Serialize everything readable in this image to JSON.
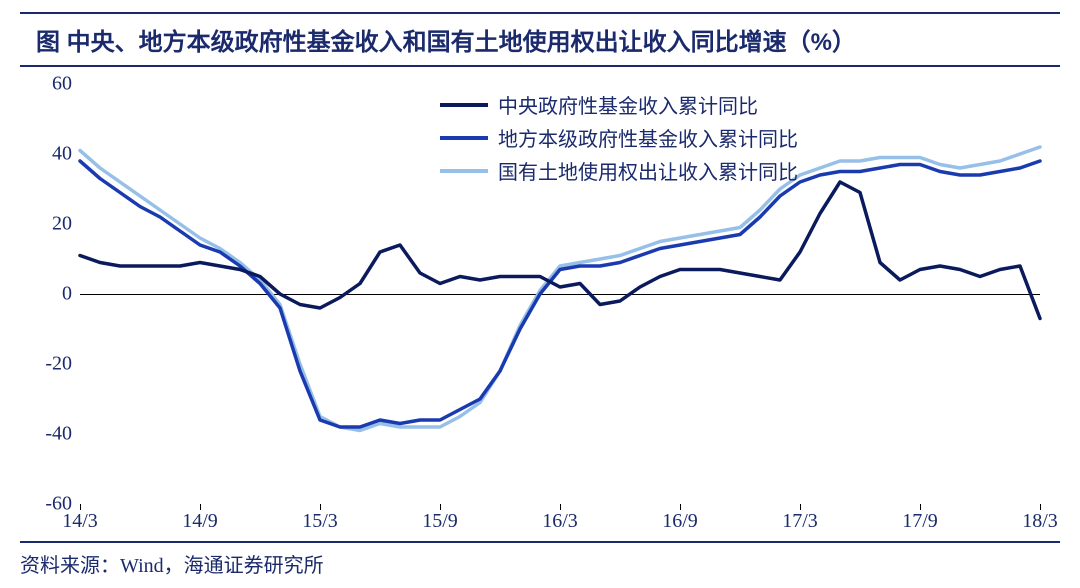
{
  "title": "图 中央、地方本级政府性基金收入和国有土地使用权出让收入同比增速（%）",
  "source": "资料来源：Wind，海通证券研究所",
  "chart": {
    "type": "line",
    "background_color": "#ffffff",
    "title_color": "#1a2a6c",
    "border_color": "#1a2a6c",
    "axis_text_color": "#1a2a6c",
    "axis_fontsize": 20,
    "title_fontsize": 24,
    "ylim": [
      -60,
      60
    ],
    "ytick_step": 20,
    "yticks": [
      60,
      40,
      20,
      0,
      -20,
      -40,
      -60
    ],
    "x_categories": [
      "14/3",
      "14/4",
      "14/5",
      "14/6",
      "14/7",
      "14/8",
      "14/9",
      "14/10",
      "14/11",
      "14/12",
      "15/1",
      "15/2",
      "15/3",
      "15/4",
      "15/5",
      "15/6",
      "15/7",
      "15/8",
      "15/9",
      "15/10",
      "15/11",
      "15/12",
      "16/1",
      "16/2",
      "16/3",
      "16/4",
      "16/5",
      "16/6",
      "16/7",
      "16/8",
      "16/9",
      "16/10",
      "16/11",
      "16/12",
      "17/1",
      "17/2",
      "17/3",
      "17/4",
      "17/5",
      "17/6",
      "17/7",
      "17/8",
      "17/9",
      "17/10",
      "17/11",
      "17/12",
      "18/1",
      "18/2",
      "18/3"
    ],
    "x_tick_labels": [
      "14/3",
      "14/9",
      "15/3",
      "15/9",
      "16/3",
      "16/9",
      "17/3",
      "17/9",
      "18/3"
    ],
    "x_tick_indices": [
      0,
      6,
      12,
      18,
      24,
      30,
      36,
      42,
      48
    ],
    "line_width": 3.5,
    "series": [
      {
        "name": "中央政府性基金收入累计同比",
        "color": "#0a1a5c",
        "values": [
          11,
          9,
          8,
          8,
          8,
          8,
          9,
          8,
          7,
          5,
          0,
          -3,
          -4,
          -1,
          3,
          12,
          14,
          6,
          3,
          5,
          4,
          5,
          5,
          5,
          2,
          3,
          -3,
          -2,
          2,
          5,
          7,
          7,
          7,
          6,
          5,
          4,
          12,
          23,
          32,
          29,
          9,
          4,
          7,
          8,
          7,
          5,
          7,
          8,
          -7
        ]
      },
      {
        "name": "地方本级政府性基金收入累计同比",
        "color": "#1a3ab0",
        "values": [
          38,
          33,
          29,
          25,
          22,
          18,
          14,
          12,
          8,
          3,
          -4,
          -22,
          -36,
          -38,
          -38,
          -36,
          -37,
          -36,
          -36,
          -33,
          -30,
          -22,
          -10,
          0,
          7,
          8,
          8,
          9,
          11,
          13,
          14,
          15,
          16,
          17,
          22,
          28,
          32,
          34,
          35,
          35,
          36,
          37,
          37,
          35,
          34,
          34,
          35,
          36,
          38
        ]
      },
      {
        "name": "国有土地使用权出让收入累计同比",
        "color": "#96c0e8",
        "values": [
          41,
          36,
          32,
          28,
          24,
          20,
          16,
          13,
          9,
          4,
          -3,
          -20,
          -35,
          -38,
          -39,
          -37,
          -38,
          -38,
          -38,
          -35,
          -31,
          -22,
          -9,
          1,
          8,
          9,
          10,
          11,
          13,
          15,
          16,
          17,
          18,
          19,
          24,
          30,
          34,
          36,
          38,
          38,
          39,
          39,
          39,
          37,
          36,
          37,
          38,
          40,
          42
        ]
      }
    ],
    "legend": {
      "position": "top-right-inside",
      "fontsize": 20,
      "swatch_width": 48,
      "items": [
        {
          "label": "中央政府性基金收入累计同比",
          "color": "#0a1a5c"
        },
        {
          "label": "地方本级政府性基金收入累计同比",
          "color": "#1a3ab0"
        },
        {
          "label": "国有土地使用权出让收入累计同比",
          "color": "#96c0e8"
        }
      ]
    }
  }
}
